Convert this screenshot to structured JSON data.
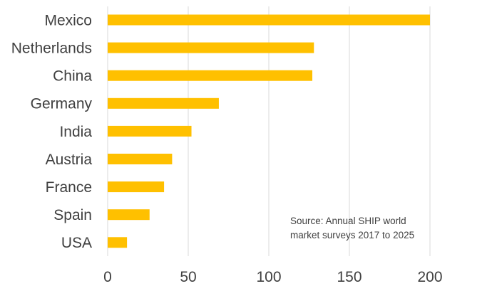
{
  "chart_data": {
    "type": "bar",
    "orientation": "horizontal",
    "categories": [
      "Mexico",
      "Netherlands",
      "China",
      "Germany",
      "India",
      "Austria",
      "France",
      "Spain",
      "USA"
    ],
    "values": [
      200,
      128,
      127,
      69,
      52,
      40,
      35,
      26,
      12
    ],
    "xlim": [
      0,
      200
    ],
    "xticks": [
      0,
      50,
      100,
      150,
      200
    ],
    "grid": "vertical",
    "bar_color": "#FFC000",
    "grid_color": "#D9D9D9",
    "annotation": [
      "Source: Annual SHIP world",
      "market surveys 2017 to 2025"
    ]
  }
}
